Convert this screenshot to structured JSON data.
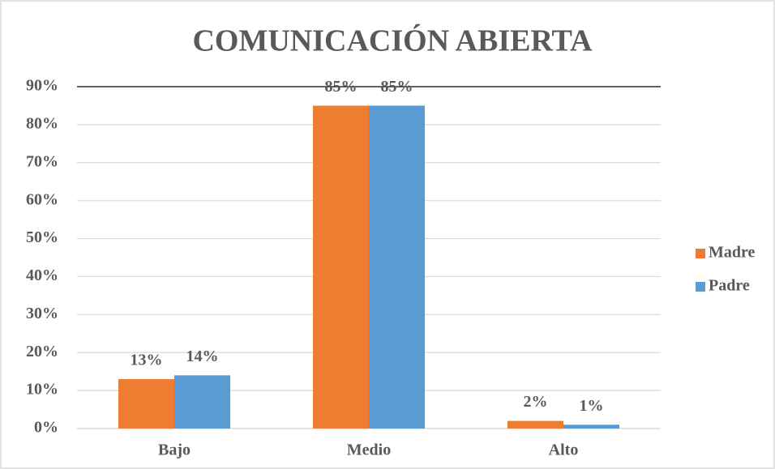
{
  "chart_data": {
    "type": "bar",
    "title": "COMUNICACIÓN ABIERTA",
    "categories": [
      "Bajo",
      "Medio",
      "Alto"
    ],
    "series": [
      {
        "name": "Madre",
        "color": "#ed7d31",
        "values": [
          13,
          85,
          2
        ],
        "value_labels": [
          "13%",
          "85%",
          "2%"
        ]
      },
      {
        "name": "Padre",
        "color": "#5b9bd5",
        "values": [
          14,
          85,
          1
        ],
        "value_labels": [
          "14%",
          "85%",
          "1%"
        ]
      }
    ],
    "ylim": [
      0,
      90
    ],
    "yticks": [
      {
        "value": 0,
        "label": "0%"
      },
      {
        "value": 10,
        "label": "10%"
      },
      {
        "value": 20,
        "label": "20%"
      },
      {
        "value": 30,
        "label": "30%"
      },
      {
        "value": 40,
        "label": "40%"
      },
      {
        "value": 50,
        "label": "50%"
      },
      {
        "value": 60,
        "label": "60%"
      },
      {
        "value": 70,
        "label": "70%"
      },
      {
        "value": 80,
        "label": "80%"
      },
      {
        "value": 90,
        "label": "90%"
      }
    ],
    "grid": true,
    "legend": "right"
  }
}
